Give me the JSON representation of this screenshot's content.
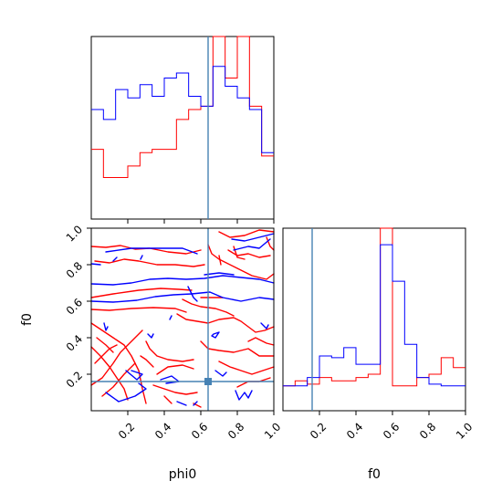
{
  "chart_data": {
    "type": "corner",
    "parameters": [
      "phi0",
      "f0"
    ],
    "truth": {
      "phi0": 0.64,
      "f0": 0.16,
      "color": "#4682b4"
    },
    "series": [
      {
        "color": "#0000ff"
      },
      {
        "color": "#ff0000"
      }
    ],
    "axis_range": [
      0,
      1
    ],
    "ticks": [
      0.2,
      0.4,
      0.6,
      0.8,
      1.0
    ],
    "tick_labels": [
      "0.2",
      "0.4",
      "0.6",
      "0.8",
      "1.0"
    ],
    "xlabel_phi0": "phi0",
    "xlabel_f0": "f0",
    "ylabel_f0": "f0",
    "hist_phi0": {
      "bins": 15,
      "blue": [
        0.66,
        0.6,
        0.78,
        0.73,
        0.81,
        0.74,
        0.85,
        0.88,
        0.74,
        0.68,
        0.92,
        0.8,
        0.73,
        0.66,
        0.4
      ],
      "red": [
        0.42,
        0.25,
        0.25,
        0.32,
        0.4,
        0.42,
        0.42,
        0.6,
        0.66,
        0.68,
        1.35,
        0.85,
        1.4,
        0.68,
        0.38
      ]
    },
    "hist_f0": {
      "bins": 15,
      "blue": [
        0.15,
        0.15,
        0.2,
        0.33,
        0.32,
        0.38,
        0.28,
        0.28,
        1.0,
        0.78,
        0.4,
        0.2,
        0.16,
        0.15,
        0.15
      ],
      "red": [
        0.15,
        0.18,
        0.16,
        0.2,
        0.18,
        0.18,
        0.2,
        0.22,
        1.35,
        0.15,
        0.15,
        0.2,
        0.22,
        0.32,
        0.26
      ]
    },
    "contours_blue": [
      [
        [
          0.0,
          0.6
        ],
        [
          0.12,
          0.595
        ],
        [
          0.25,
          0.605
        ],
        [
          0.35,
          0.625
        ],
        [
          0.45,
          0.635
        ],
        [
          0.55,
          0.64
        ],
        [
          0.65,
          0.65
        ],
        [
          0.72,
          0.62
        ],
        [
          0.82,
          0.6
        ],
        [
          0.92,
          0.62
        ],
        [
          1.0,
          0.61
        ]
      ],
      [
        [
          0.0,
          0.695
        ],
        [
          0.12,
          0.69
        ],
        [
          0.22,
          0.7
        ],
        [
          0.32,
          0.72
        ],
        [
          0.42,
          0.725
        ],
        [
          0.52,
          0.72
        ],
        [
          0.62,
          0.725
        ],
        [
          0.72,
          0.74
        ],
        [
          0.82,
          0.73
        ],
        [
          0.92,
          0.72
        ],
        [
          1.0,
          0.7
        ]
      ],
      [
        [
          0.62,
          0.745
        ],
        [
          0.7,
          0.755
        ],
        [
          0.78,
          0.745
        ]
      ],
      [
        [
          0.77,
          0.94
        ],
        [
          0.84,
          0.93
        ],
        [
          0.92,
          0.95
        ],
        [
          1.0,
          0.97
        ]
      ],
      [
        [
          0.78,
          0.88
        ],
        [
          0.86,
          0.9
        ],
        [
          0.92,
          0.89
        ],
        [
          0.98,
          0.94
        ]
      ],
      [
        [
          0.08,
          0.87
        ],
        [
          0.22,
          0.89
        ],
        [
          0.35,
          0.89
        ],
        [
          0.5,
          0.89
        ],
        [
          0.58,
          0.86
        ]
      ],
      [
        [
          0.0,
          0.805
        ],
        [
          0.05,
          0.8
        ]
      ],
      [
        [
          0.53,
          0.68
        ],
        [
          0.56,
          0.62
        ],
        [
          0.58,
          0.6
        ]
      ],
      [
        [
          0.66,
          0.41
        ],
        [
          0.68,
          0.4
        ],
        [
          0.7,
          0.43
        ],
        [
          0.67,
          0.42
        ],
        [
          0.66,
          0.41
        ]
      ],
      [
        [
          0.93,
          0.48
        ],
        [
          0.96,
          0.45
        ],
        [
          0.97,
          0.47
        ]
      ],
      [
        [
          0.07,
          0.48
        ],
        [
          0.08,
          0.44
        ],
        [
          0.09,
          0.46
        ]
      ],
      [
        [
          0.31,
          0.42
        ],
        [
          0.33,
          0.4
        ],
        [
          0.34,
          0.42
        ]
      ],
      [
        [
          0.19,
          0.22
        ],
        [
          0.25,
          0.17
        ],
        [
          0.28,
          0.2
        ],
        [
          0.22,
          0.22
        ]
      ],
      [
        [
          0.38,
          0.17
        ],
        [
          0.44,
          0.19
        ],
        [
          0.48,
          0.16
        ],
        [
          0.41,
          0.15
        ]
      ],
      [
        [
          0.68,
          0.22
        ],
        [
          0.72,
          0.19
        ],
        [
          0.74,
          0.21
        ]
      ],
      [
        [
          0.08,
          0.1
        ],
        [
          0.15,
          0.05
        ],
        [
          0.24,
          0.08
        ],
        [
          0.3,
          0.12
        ],
        [
          0.26,
          0.15
        ]
      ],
      [
        [
          0.79,
          0.11
        ],
        [
          0.81,
          0.06
        ],
        [
          0.84,
          0.1
        ],
        [
          0.86,
          0.07
        ],
        [
          0.88,
          0.11
        ]
      ],
      [
        [
          0.47,
          0.05
        ],
        [
          0.52,
          0.03
        ]
      ],
      [
        [
          0.56,
          0.03
        ],
        [
          0.58,
          0.05
        ]
      ],
      [
        [
          0.12,
          0.82
        ],
        [
          0.14,
          0.84
        ]
      ],
      [
        [
          0.27,
          0.83
        ],
        [
          0.28,
          0.85
        ]
      ],
      [
        [
          0.43,
          0.5
        ],
        [
          0.44,
          0.52
        ]
      ]
    ],
    "contours_red": [
      [
        [
          0.0,
          0.9
        ],
        [
          0.08,
          0.895
        ],
        [
          0.16,
          0.905
        ],
        [
          0.24,
          0.885
        ],
        [
          0.32,
          0.89
        ],
        [
          0.42,
          0.87
        ],
        [
          0.52,
          0.86
        ],
        [
          0.6,
          0.88
        ]
      ],
      [
        [
          0.02,
          0.82
        ],
        [
          0.1,
          0.81
        ],
        [
          0.18,
          0.83
        ],
        [
          0.26,
          0.82
        ],
        [
          0.36,
          0.8
        ],
        [
          0.46,
          0.8
        ],
        [
          0.56,
          0.79
        ],
        [
          0.62,
          0.8
        ]
      ],
      [
        [
          0.64,
          0.91
        ],
        [
          0.66,
          0.86
        ],
        [
          0.7,
          0.83
        ],
        [
          0.8,
          0.78
        ],
        [
          0.88,
          0.74
        ],
        [
          0.96,
          0.72
        ],
        [
          1.0,
          0.75
        ]
      ],
      [
        [
          0.7,
          0.98
        ],
        [
          0.76,
          0.95
        ],
        [
          0.84,
          0.96
        ],
        [
          0.92,
          0.99
        ],
        [
          1.0,
          0.98
        ]
      ],
      [
        [
          0.75,
          0.88
        ],
        [
          0.8,
          0.85
        ],
        [
          0.86,
          0.86
        ],
        [
          0.92,
          0.84
        ],
        [
          0.98,
          0.85
        ]
      ],
      [
        [
          0.78,
          0.9
        ],
        [
          0.8,
          0.84
        ],
        [
          0.84,
          0.83
        ]
      ],
      [
        [
          0.96,
          0.95
        ],
        [
          0.98,
          0.9
        ],
        [
          1.0,
          0.88
        ]
      ],
      [
        [
          0.0,
          0.62
        ],
        [
          0.12,
          0.64
        ],
        [
          0.26,
          0.66
        ],
        [
          0.38,
          0.67
        ],
        [
          0.48,
          0.665
        ],
        [
          0.55,
          0.66
        ]
      ],
      [
        [
          0.0,
          0.555
        ],
        [
          0.1,
          0.55
        ],
        [
          0.22,
          0.56
        ],
        [
          0.34,
          0.565
        ],
        [
          0.46,
          0.56
        ],
        [
          0.52,
          0.54
        ]
      ],
      [
        [
          0.47,
          0.53
        ],
        [
          0.52,
          0.5
        ],
        [
          0.58,
          0.49
        ],
        [
          0.64,
          0.48
        ],
        [
          0.7,
          0.5
        ],
        [
          0.78,
          0.51
        ],
        [
          0.82,
          0.49
        ],
        [
          0.86,
          0.46
        ],
        [
          0.9,
          0.43
        ],
        [
          0.95,
          0.44
        ],
        [
          1.0,
          0.46
        ]
      ],
      [
        [
          0.5,
          0.61
        ],
        [
          0.55,
          0.585
        ],
        [
          0.6,
          0.57
        ],
        [
          0.68,
          0.56
        ],
        [
          0.74,
          0.54
        ],
        [
          0.78,
          0.52
        ]
      ],
      [
        [
          0.6,
          0.62
        ],
        [
          0.72,
          0.62
        ]
      ],
      [
        [
          0.7,
          0.85
        ],
        [
          0.71,
          0.8
        ]
      ],
      [
        [
          0.0,
          0.48
        ],
        [
          0.06,
          0.44
        ],
        [
          0.12,
          0.4
        ],
        [
          0.18,
          0.36
        ],
        [
          0.22,
          0.3
        ],
        [
          0.26,
          0.22
        ],
        [
          0.28,
          0.12
        ],
        [
          0.3,
          0.04
        ]
      ],
      [
        [
          0.0,
          0.35
        ],
        [
          0.05,
          0.3
        ],
        [
          0.1,
          0.24
        ],
        [
          0.14,
          0.18
        ],
        [
          0.18,
          0.12
        ],
        [
          0.2,
          0.06
        ]
      ],
      [
        [
          0.0,
          0.14
        ],
        [
          0.06,
          0.18
        ],
        [
          0.12,
          0.26
        ],
        [
          0.16,
          0.32
        ],
        [
          0.22,
          0.38
        ],
        [
          0.28,
          0.44
        ]
      ],
      [
        [
          0.03,
          0.4
        ],
        [
          0.08,
          0.36
        ],
        [
          0.12,
          0.32
        ]
      ],
      [
        [
          0.02,
          0.26
        ],
        [
          0.1,
          0.34
        ],
        [
          0.14,
          0.36
        ]
      ],
      [
        [
          0.06,
          0.08
        ],
        [
          0.12,
          0.13
        ],
        [
          0.18,
          0.2
        ],
        [
          0.24,
          0.26
        ]
      ],
      [
        [
          0.3,
          0.38
        ],
        [
          0.32,
          0.34
        ],
        [
          0.36,
          0.3
        ],
        [
          0.42,
          0.28
        ],
        [
          0.5,
          0.27
        ],
        [
          0.56,
          0.28
        ]
      ],
      [
        [
          0.36,
          0.2
        ],
        [
          0.42,
          0.24
        ],
        [
          0.5,
          0.25
        ],
        [
          0.56,
          0.23
        ]
      ],
      [
        [
          0.34,
          0.14
        ],
        [
          0.4,
          0.12
        ],
        [
          0.46,
          0.1
        ],
        [
          0.52,
          0.09
        ],
        [
          0.58,
          0.1
        ]
      ],
      [
        [
          0.6,
          0.38
        ],
        [
          0.64,
          0.34
        ],
        [
          0.7,
          0.33
        ],
        [
          0.78,
          0.32
        ],
        [
          0.86,
          0.34
        ],
        [
          0.92,
          0.3
        ],
        [
          1.0,
          0.3
        ]
      ],
      [
        [
          0.7,
          0.27
        ],
        [
          0.76,
          0.24
        ],
        [
          0.82,
          0.22
        ],
        [
          0.88,
          0.2
        ],
        [
          0.94,
          0.22
        ],
        [
          1.0,
          0.24
        ]
      ],
      [
        [
          0.86,
          0.38
        ],
        [
          0.9,
          0.4
        ],
        [
          0.96,
          0.37
        ],
        [
          1.0,
          0.36
        ]
      ],
      [
        [
          0.8,
          0.13
        ],
        [
          0.86,
          0.16
        ],
        [
          0.92,
          0.16
        ],
        [
          0.98,
          0.18
        ]
      ],
      [
        [
          0.4,
          0.08
        ],
        [
          0.44,
          0.04
        ]
      ],
      [
        [
          0.56,
          0.04
        ],
        [
          0.6,
          0.02
        ]
      ],
      [
        [
          0.27,
          0.3
        ],
        [
          0.3,
          0.28
        ],
        [
          0.34,
          0.24
        ]
      ]
    ]
  }
}
